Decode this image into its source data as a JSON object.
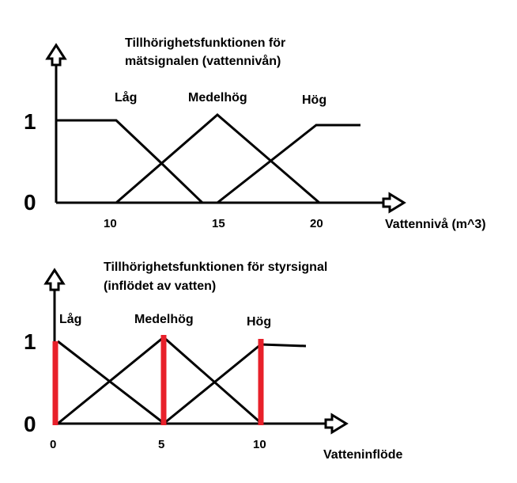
{
  "diagram1": {
    "title_line1": "Tillhörighetsfunktionen för",
    "title_line2": "mätsignalen (vattennivån)",
    "y_one": "1",
    "y_zero": "0",
    "sets": [
      "Låg",
      "Medelhög",
      "Hög"
    ],
    "x_ticks": [
      "10",
      "15",
      "20"
    ],
    "x_axis_label": "Vattennivå (m^3)"
  },
  "diagram2": {
    "title_line1": "Tillhörighetsfunktionen för styrsignal",
    "title_line2": "(inflödet av vatten)",
    "y_one": "1",
    "y_zero": "0",
    "sets": [
      "Låg",
      "Medelhög",
      "Hög"
    ],
    "x_ticks": [
      "0",
      "5",
      "10"
    ],
    "x_axis_label": "Vatteninflöde",
    "highlight_color": "#e8202a"
  }
}
